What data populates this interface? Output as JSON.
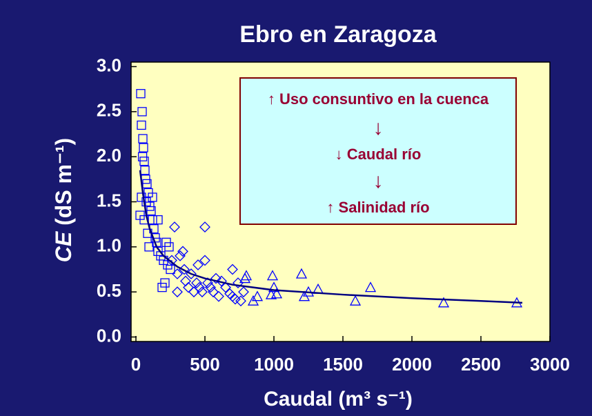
{
  "chart_data": {
    "type": "scatter",
    "title": "Ebro en Zaragoza",
    "xlabel": "Caudal (m³ s⁻¹)",
    "ylabel": {
      "italic": "CE",
      "rest": " (dS m⁻¹)"
    },
    "xlim": [
      -35,
      3000
    ],
    "ylim": [
      -0.05,
      3.05
    ],
    "xticks": [
      0,
      500,
      1000,
      1500,
      2000,
      2500,
      3000
    ],
    "yticks": [
      {
        "value": 0,
        "label": "0.0"
      },
      {
        "value": 0.5,
        "label": "0.5"
      },
      {
        "value": 1,
        "label": "1.0"
      },
      {
        "value": 1.5,
        "label": "1.5"
      },
      {
        "value": 2,
        "label": "2.0"
      },
      {
        "value": 2.5,
        "label": "2.5"
      },
      {
        "value": 3,
        "label": "3.0"
      }
    ],
    "background": "#191970",
    "plot_color": "#ffffc0",
    "series": [
      {
        "marker": "square",
        "color": "#0000ff",
        "x": [
          35,
          45,
          40,
          50,
          55,
          48,
          60,
          65,
          70,
          80,
          90,
          75,
          100,
          110,
          60,
          120,
          130,
          85,
          140,
          150,
          95,
          160,
          180,
          200,
          220,
          230,
          250,
          210,
          190,
          40,
          30,
          120,
          160,
          240
        ],
        "y": [
          2.7,
          2.5,
          2.35,
          2.2,
          2.1,
          2.0,
          1.95,
          1.85,
          1.75,
          1.7,
          1.6,
          1.5,
          1.45,
          1.4,
          1.3,
          1.3,
          1.2,
          1.15,
          1.1,
          1.05,
          1.0,
          0.95,
          0.9,
          0.85,
          1.05,
          0.8,
          0.75,
          0.6,
          0.55,
          1.55,
          1.35,
          1.55,
          1.3,
          1.0
        ]
      },
      {
        "marker": "diamond",
        "color": "#0000ff",
        "x": [
          260,
          280,
          300,
          320,
          340,
          360,
          380,
          400,
          420,
          440,
          460,
          480,
          500,
          500,
          520,
          540,
          560,
          580,
          600,
          620,
          650,
          680,
          700,
          720,
          740,
          760,
          780,
          300,
          350,
          450,
          700
        ],
        "y": [
          0.85,
          1.22,
          0.7,
          0.9,
          0.95,
          0.62,
          0.55,
          0.7,
          0.5,
          0.6,
          0.55,
          0.5,
          0.85,
          1.22,
          0.6,
          0.55,
          0.5,
          0.65,
          0.45,
          0.62,
          0.55,
          0.48,
          0.75,
          0.42,
          0.6,
          0.4,
          0.5,
          0.5,
          0.75,
          0.8,
          0.45
        ]
      },
      {
        "marker": "triangle",
        "color": "#0000ff",
        "x": [
          790,
          800,
          850,
          880,
          980,
          990,
          1000,
          1020,
          1200,
          1220,
          1250,
          1320,
          1590,
          1700,
          2230,
          2760
        ],
        "y": [
          0.65,
          0.68,
          0.4,
          0.45,
          0.47,
          0.68,
          0.55,
          0.48,
          0.7,
          0.45,
          0.5,
          0.53,
          0.4,
          0.55,
          0.38,
          0.38
        ]
      }
    ],
    "fit": {
      "color": "#000080",
      "x": [
        30,
        50,
        75,
        100,
        150,
        200,
        300,
        400,
        500,
        700,
        1000,
        1500,
        2000,
        2500,
        2800
      ],
      "y": [
        1.85,
        1.6,
        1.35,
        1.2,
        1.0,
        0.9,
        0.78,
        0.7,
        0.65,
        0.58,
        0.52,
        0.47,
        0.43,
        0.4,
        0.38
      ]
    },
    "annotation": {
      "color": "#990033",
      "box_fill": "#ccffff",
      "box_border": "#800000",
      "lines": [
        "↑ Uso consuntivo en la cuenca",
        "↓",
        "↓ Caudal río",
        "↓",
        "↑ Salinidad río"
      ]
    }
  }
}
